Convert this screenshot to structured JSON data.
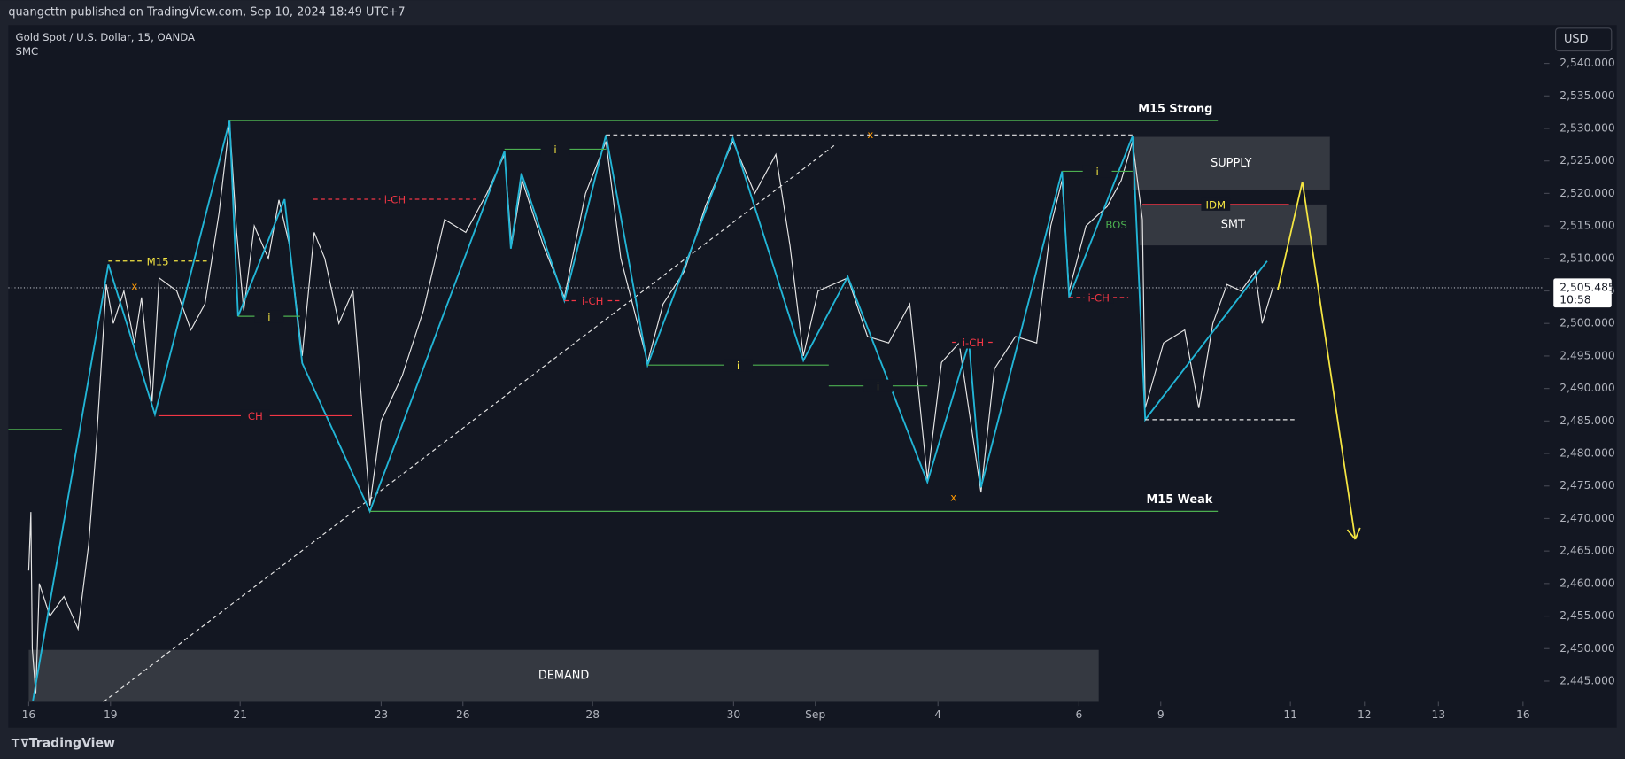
{
  "header": "quangcttn published on TradingView.com, Sep 10, 2024 18:49 UTC+7",
  "footer_brand": "TradingView",
  "currency": "USD",
  "chart_data": {
    "type": "line",
    "xlim": [
      -0.29,
      21.5
    ],
    "ylim": [
      2441.8,
      2545.9
    ],
    "xticks": [
      {
        "value": 0,
        "label": "16"
      },
      {
        "value": 1.16,
        "label": "19"
      },
      {
        "value": 3.0,
        "label": "21"
      },
      {
        "value": 5.0,
        "label": "23"
      },
      {
        "value": 6.16,
        "label": "26"
      },
      {
        "value": 8.0,
        "label": "28"
      },
      {
        "value": 10.0,
        "label": "30"
      },
      {
        "value": 11.16,
        "label": "Sep"
      },
      {
        "value": 12.9,
        "label": "4"
      },
      {
        "value": 14.9,
        "label": "6"
      },
      {
        "value": 16.06,
        "label": "9"
      },
      {
        "value": 17.9,
        "label": "11"
      },
      {
        "value": 18.95,
        "label": "12"
      },
      {
        "value": 20.0,
        "label": "13"
      },
      {
        "value": 21.2,
        "label": "16"
      }
    ],
    "yticks": [
      {
        "value": 2445,
        "label": "2,445.000"
      },
      {
        "value": 2450,
        "label": "2,450.000"
      },
      {
        "value": 2455,
        "label": "2,455.000"
      },
      {
        "value": 2460,
        "label": "2,460.000"
      },
      {
        "value": 2465,
        "label": "2,465.000"
      },
      {
        "value": 2470,
        "label": "2,470.000"
      },
      {
        "value": 2475,
        "label": "2,475.000"
      },
      {
        "value": 2480,
        "label": "2,480.000"
      },
      {
        "value": 2485,
        "label": "2,485.000"
      },
      {
        "value": 2490,
        "label": "2,490.000"
      },
      {
        "value": 2495,
        "label": "2,495.000"
      },
      {
        "value": 2500,
        "label": "2,500.000"
      },
      {
        "value": 2505,
        "label": "2,505.000"
      },
      {
        "value": 2510,
        "label": "2,510.000"
      },
      {
        "value": 2515,
        "label": "2,515.000"
      },
      {
        "value": 2520,
        "label": "2,520.000"
      },
      {
        "value": 2525,
        "label": "2,525.000"
      },
      {
        "value": 2530,
        "label": "2,530.000"
      },
      {
        "value": 2535,
        "label": "2,535.000"
      },
      {
        "value": 2540,
        "label": "2,540.000"
      }
    ],
    "series": [
      {
        "name": "Gold Spot / U.S. Dollar, 15, OANDA",
        "color": "#e6e6e6",
        "x": [
          0,
          0.03,
          0.05,
          0.1,
          0.15,
          0.3,
          0.5,
          0.7,
          0.85,
          0.95,
          1.1,
          1.2,
          1.35,
          1.5,
          1.6,
          1.75,
          1.85,
          2.1,
          2.3,
          2.5,
          2.7,
          2.85,
          2.95,
          3.05,
          3.2,
          3.4,
          3.55,
          3.7,
          3.88,
          4.05,
          4.2,
          4.4,
          4.6,
          4.84,
          5.0,
          5.3,
          5.6,
          5.9,
          6.2,
          6.5,
          6.75,
          6.85,
          7.0,
          7.3,
          7.6,
          7.9,
          8.19,
          8.4,
          8.78,
          9.0,
          9.3,
          9.6,
          9.99,
          10.3,
          10.6,
          10.8,
          10.99,
          11.2,
          11.62,
          11.9,
          12.2,
          12.5,
          12.75,
          12.95,
          13.2,
          13.51,
          13.7,
          14.0,
          14.3,
          14.5,
          14.66,
          14.76,
          15.0,
          15.3,
          15.5,
          15.66,
          15.8,
          15.84,
          16.1,
          16.4,
          16.6,
          16.8,
          17.0,
          17.2,
          17.4,
          17.5,
          17.65
        ],
        "values": [
          2462,
          2471,
          2450,
          2443,
          2460,
          2455,
          2458,
          2453,
          2466,
          2480,
          2506,
          2500,
          2505,
          2497,
          2504,
          2488,
          2507,
          2505,
          2499,
          2503,
          2517,
          2531,
          2514,
          2502,
          2515,
          2510,
          2519,
          2512,
          2495,
          2514,
          2510,
          2500,
          2505,
          2472,
          2485,
          2492,
          2502,
          2516,
          2514,
          2520,
          2526,
          2512,
          2522,
          2512,
          2504,
          2520,
          2528,
          2510,
          2494,
          2503,
          2508,
          2518,
          2528,
          2520,
          2526,
          2512,
          2495,
          2505,
          2507,
          2498,
          2497,
          2503,
          2476,
          2494,
          2497,
          2474,
          2493,
          2498,
          2497,
          2515,
          2522,
          2505,
          2515,
          2518,
          2522,
          2528,
          2516,
          2487,
          2497,
          2499,
          2487,
          2500,
          2506,
          2505,
          2508,
          2500,
          2505.485
        ]
      },
      {
        "name": "SMC",
        "color": "#22b5d6",
        "x": [
          0.06,
          1.13,
          1.79,
          2.85,
          2.97,
          3.63,
          3.88,
          4.84,
          6.75,
          6.84,
          6.99,
          7.6,
          8.19,
          8.78,
          9.99,
          10.99,
          11.62,
          12.75,
          13.34,
          13.51,
          14.66,
          14.76,
          15.66,
          15.84,
          17.57
        ],
        "values": [
          2442,
          2509.1,
          2486,
          2531.2,
          2501.1,
          2519.1,
          2493.9,
          2471.1,
          2526.5,
          2511.5,
          2523.1,
          2503.5,
          2529,
          2493.6,
          2528.5,
          2494.3,
          2507.2,
          2475.6,
          2497.1,
          2474.8,
          2523.4,
          2504,
          2528.8,
          2485.2,
          2509.6
        ]
      }
    ],
    "last_price": {
      "value": 2505.485,
      "label": "2,505.485",
      "countdown": "10:58"
    },
    "zones": [
      {
        "label": "SUPPLY",
        "x": [
          15.66,
          18.46
        ],
        "y": [
          2520.6,
          2528.7
        ]
      },
      {
        "label": "SMT",
        "x": [
          15.76,
          18.41
        ],
        "y": [
          2512,
          2518.3
        ]
      },
      {
        "label": "DEMAND",
        "x": [
          0,
          15.18
        ],
        "y": [
          2441.8,
          2449.8
        ]
      }
    ],
    "lines": [
      {
        "label": "M15 Strong",
        "y": 2531.2,
        "x": [
          2.85,
          16.87
        ],
        "color": "#4caf50",
        "label_color": "#ffffff",
        "label_align": "end"
      },
      {
        "label": "M15 Weak",
        "y": 2471.1,
        "x": [
          4.84,
          16.87
        ],
        "color": "#4caf50",
        "label_color": "#ffffff",
        "label_align": "end"
      },
      {
        "label": "CH",
        "y": 2485.8,
        "x": [
          1.84,
          4.59
        ],
        "color": "#f23645",
        "label_color": "#f23645"
      },
      {
        "label": "i-CH",
        "y": 2519.1,
        "x": [
          4.04,
          6.35
        ],
        "color": "#f23645",
        "label_color": "#f23645",
        "dashed": true
      },
      {
        "label": "i-CH",
        "y": 2503.5,
        "x": [
          7.6,
          8.4
        ],
        "color": "#f23645",
        "label_color": "#f23645",
        "dashed": true
      },
      {
        "label": "i-CH",
        "y": 2497.1,
        "x": [
          13.1,
          13.7
        ],
        "color": "#f23645",
        "label_color": "#f23645",
        "dashed": true
      },
      {
        "label": "i-CH",
        "y": 2504,
        "x": [
          14.76,
          15.6
        ],
        "color": "#f23645",
        "label_color": "#f23645",
        "dashed": true
      },
      {
        "label": "i",
        "y": 2501.1,
        "x": [
          2.97,
          3.85
        ],
        "color": "#4caf50",
        "label_color": "#f5e642"
      },
      {
        "label": "i",
        "y": 2526.8,
        "x": [
          6.75,
          8.19
        ],
        "color": "#4caf50",
        "label_color": "#f5e642"
      },
      {
        "label": "i",
        "y": 2493.6,
        "x": [
          8.78,
          11.35
        ],
        "color": "#4caf50",
        "label_color": "#f5e642"
      },
      {
        "label": "i",
        "y": 2490.4,
        "x": [
          11.35,
          12.75
        ],
        "color": "#4caf50",
        "label_color": "#f5e642"
      },
      {
        "label": "i",
        "y": 2523.4,
        "x": [
          14.66,
          15.66
        ],
        "color": "#4caf50",
        "label_color": "#f5e642"
      },
      {
        "label": "M15",
        "y": 2509.6,
        "x": [
          1.13,
          2.53
        ],
        "color": "#f5e642",
        "label_color": "#f5e642",
        "dashed": true
      },
      {
        "label": "IDM",
        "y": 2518.3,
        "x": [
          15.8,
          17.88
        ],
        "color": "#f23645",
        "label_color": "#f5e642"
      },
      {
        "y": 2529,
        "x": [
          8.19,
          15.66
        ],
        "color": "#e6e6e6",
        "dashed": true
      },
      {
        "y": 2485.2,
        "x": [
          15.84,
          17.97
        ],
        "color": "#e6e6e6",
        "dashed": true
      },
      {
        "y": 2483.7,
        "x": [
          -0.29,
          0.47
        ],
        "color": "#4caf50"
      }
    ],
    "texts": [
      {
        "label": "BOS",
        "x": 15.43,
        "y": 2515.1,
        "color": "#4caf50"
      },
      {
        "label": "x",
        "x": 1.5,
        "y": 2505.7,
        "color": "#ff9800"
      },
      {
        "label": "x",
        "x": 11.94,
        "y": 2529,
        "color": "#ff9800"
      },
      {
        "label": "x",
        "x": 13.12,
        "y": 2473.2,
        "color": "#ff9800"
      }
    ],
    "trendline": {
      "x": [
        1.06,
        11.43
      ],
      "values": [
        2441.8,
        2527.4
      ],
      "color": "#e6e6e6"
    },
    "projection": {
      "x": [
        17.72,
        18.07,
        18.82
      ],
      "values": [
        2505.1,
        2521.8,
        2466.8
      ],
      "color": "#f5e642"
    }
  }
}
